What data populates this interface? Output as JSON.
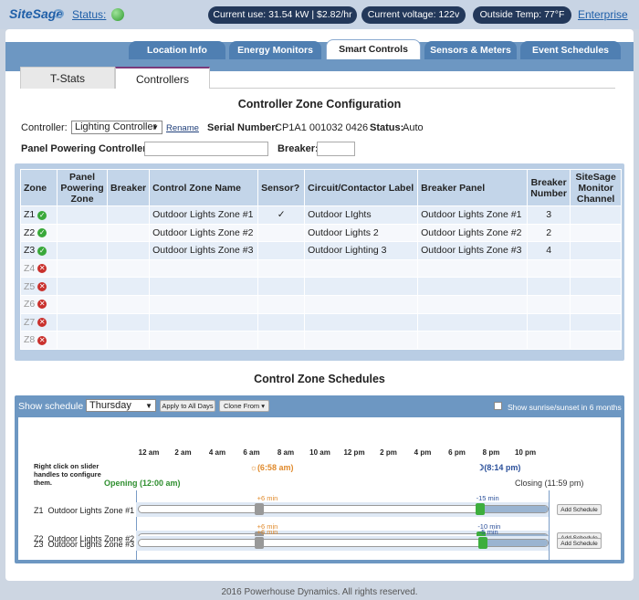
{
  "header": {
    "logo": "SiteSage",
    "status_label": "Status:",
    "current_use": "Current use: 31.54 kW | $2.82/hr",
    "current_voltage": "Current voltage: 122v",
    "outside_temp": "Outside Temp: 77°F",
    "enterprise": "Enterprise"
  },
  "tabs": [
    "Location Info",
    "Energy Monitors",
    "Smart Controls",
    "Sensors & Meters",
    "Event Schedules"
  ],
  "active_tab": "Smart Controls",
  "subtabs": [
    "T-Stats",
    "Controllers"
  ],
  "config": {
    "title": "Controller Zone Configuration",
    "controller_label": "Controller:",
    "controller_value": "Lighting Controller",
    "rename": "Rename",
    "serial_label": "Serial Number:",
    "serial_value": "CP1A1 001032 0426",
    "status_label": "Status:",
    "status_value": "Auto",
    "panel_label": "Panel Powering Controller:",
    "panel_value": "",
    "breaker_label": "Breaker:",
    "breaker_value": ""
  },
  "zone_table": {
    "headers": {
      "zone": "Zone",
      "panel": "Panel Powering Zone",
      "breaker": "Breaker",
      "name": "Control Zone Name",
      "sensor": "Sensor?",
      "circuit": "Circuit/Contactor Label",
      "bpanel": "Breaker Panel",
      "bnum": "Breaker Number",
      "channel": "SiteSage Monitor Channel"
    },
    "rows": [
      {
        "zone": "Z1",
        "status": "ok",
        "panel": "",
        "breaker": "",
        "name": "Outdoor Lights Zone #1",
        "sensor": "✓",
        "circuit": "Outdoor LIghts",
        "bpanel": "Outdoor Lights Zone #1",
        "bnum": "3",
        "channel": ""
      },
      {
        "zone": "Z2",
        "status": "ok",
        "panel": "",
        "breaker": "",
        "name": "Outdoor Lights Zone #2",
        "sensor": "",
        "circuit": "Outdoor Lights 2",
        "bpanel": "Outdoor Lights Zone #2",
        "bnum": "2",
        "channel": ""
      },
      {
        "zone": "Z3",
        "status": "ok",
        "panel": "",
        "breaker": "",
        "name": "Outdoor Lights Zone #3",
        "sensor": "",
        "circuit": "Outdoor Lighting 3",
        "bpanel": "Outdoor Lights Zone #3",
        "bnum": "4",
        "channel": ""
      },
      {
        "zone": "Z4",
        "status": "off",
        "panel": "",
        "breaker": "",
        "name": "",
        "sensor": "",
        "circuit": "",
        "bpanel": "",
        "bnum": "",
        "channel": ""
      },
      {
        "zone": "Z5",
        "status": "off",
        "panel": "",
        "breaker": "",
        "name": "",
        "sensor": "",
        "circuit": "",
        "bpanel": "",
        "bnum": "",
        "channel": ""
      },
      {
        "zone": "Z6",
        "status": "off",
        "panel": "",
        "breaker": "",
        "name": "",
        "sensor": "",
        "circuit": "",
        "bpanel": "",
        "bnum": "",
        "channel": ""
      },
      {
        "zone": "Z7",
        "status": "off",
        "panel": "",
        "breaker": "",
        "name": "",
        "sensor": "",
        "circuit": "",
        "bpanel": "",
        "bnum": "",
        "channel": ""
      },
      {
        "zone": "Z8",
        "status": "off",
        "panel": "",
        "breaker": "",
        "name": "",
        "sensor": "",
        "circuit": "",
        "bpanel": "",
        "bnum": "",
        "channel": ""
      }
    ]
  },
  "schedule": {
    "title": "Control Zone Schedules",
    "show_label": "Show schedule",
    "day": "Thursday",
    "apply_all": "Apply to All Days",
    "clone_from": "Clone From",
    "sunrise_label": "Show sunrise/sunset in 6 months",
    "ticks": [
      "12 am",
      "2 am",
      "4 am",
      "6 am",
      "8 am",
      "10 am",
      "12 pm",
      "2 pm",
      "4 pm",
      "6 pm",
      "8 pm",
      "10 pm"
    ],
    "hint": "Right click on slider handles to configure them.",
    "opening": "Opening (12:00 am)",
    "closing": "Closing (11:59 pm)",
    "sunrise": "(6:58 am)",
    "sunset": "(8:14 pm)",
    "sunrise_hour": 6.97,
    "sunset_hour": 20.23,
    "add_label": "Add Schedule",
    "rows": [
      {
        "zone": "Z1",
        "name": "Outdoor Lights Zone #1",
        "on_offset": "+6 min",
        "off_offset": "-15 min",
        "on_hour": 7.07,
        "off_hour": 19.98
      },
      {
        "zone": "Z2",
        "name": "Outdoor Lights Zone #2",
        "on_offset": "+6 min",
        "off_offset": "-10 min",
        "on_hour": 7.07,
        "off_hour": 20.07
      },
      {
        "zone": "Z3",
        "name": "Outdoor Lights Zone #3",
        "on_offset": "+6 min",
        "off_offset": "-5 min",
        "on_hour": 7.07,
        "off_hour": 20.15
      }
    ]
  },
  "footer": "2016 Powerhouse Dynamics. All rights reserved.",
  "colors": {
    "navy": "#23385a",
    "band": "#6d97c2",
    "green": "#39a83a",
    "red": "#c9302c"
  }
}
